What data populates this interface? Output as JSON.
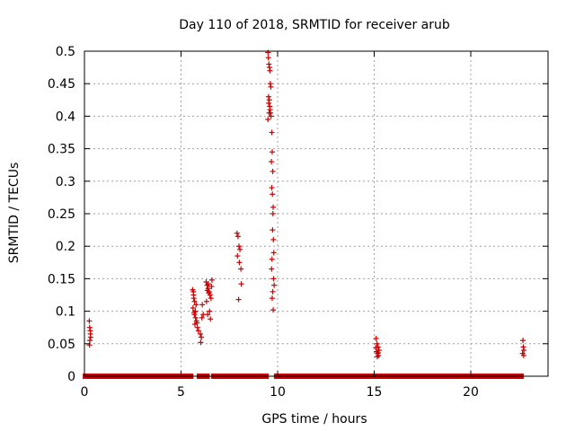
{
  "chart_data": {
    "type": "scatter",
    "title": "Day 110 of 2018, SRMTID for receiver arub",
    "xlabel": "GPS time / hours",
    "ylabel": "SRMTID / TECUs",
    "xlim": [
      0,
      24
    ],
    "ylim": [
      0,
      0.5
    ],
    "xticks": [
      0,
      5,
      10,
      15,
      20
    ],
    "xtick_labels": [
      "0",
      "5",
      "10",
      "15",
      "20"
    ],
    "yticks": [
      0,
      0.05,
      0.1,
      0.15,
      0.2,
      0.25,
      0.3,
      0.35,
      0.4,
      0.45,
      0.5
    ],
    "ytick_labels": [
      "0",
      "0.05",
      "0.1",
      "0.15",
      "0.2",
      "0.25",
      "0.3",
      "0.35",
      "0.4",
      "0.45",
      "0.5"
    ],
    "grid": true,
    "marker": "+",
    "series": [
      {
        "name": "SRMTID",
        "color": "#cc0000",
        "zero_segments": [
          [
            0.05,
            0.25
          ],
          [
            0.5,
            5.5
          ],
          [
            5.95,
            6.35
          ],
          [
            6.7,
            7.9
          ],
          [
            8.1,
            9.4
          ],
          [
            9.95,
            15.0
          ],
          [
            15.25,
            22.6
          ]
        ],
        "x": [
          0.25,
          0.27,
          0.3,
          0.32,
          0.28,
          0.26,
          0.31,
          5.6,
          5.65,
          5.7,
          5.62,
          5.68,
          5.75,
          5.8,
          5.72,
          5.85,
          5.9,
          5.78,
          5.66,
          5.74,
          5.64,
          5.69,
          5.83,
          6.0,
          6.05,
          6.02,
          6.1,
          6.15,
          6.08,
          6.3,
          6.35,
          6.4,
          6.45,
          6.5,
          6.55,
          6.6,
          6.42,
          6.48,
          6.38,
          6.52,
          6.32,
          6.58,
          6.44,
          6.36,
          7.9,
          7.95,
          8.0,
          8.05,
          7.92,
          8.02,
          8.1,
          8.12,
          7.98,
          9.5,
          9.52,
          9.55,
          9.58,
          9.6,
          9.62,
          9.65,
          9.53,
          9.57,
          9.61,
          9.63,
          9.66,
          9.5,
          9.54,
          9.59,
          9.56,
          9.7,
          9.72,
          9.68,
          9.75,
          9.7,
          9.73,
          9.77,
          9.76,
          9.74,
          9.78,
          9.8,
          9.71,
          9.69,
          9.79,
          9.82,
          9.75,
          9.72,
          9.77,
          15.1,
          15.15,
          15.2,
          15.25,
          15.12,
          15.18,
          15.22,
          15.16,
          15.08,
          15.2,
          22.7,
          22.72,
          22.75,
          22.68,
          22.74
        ],
        "y": [
          0.085,
          0.075,
          0.07,
          0.06,
          0.055,
          0.048,
          0.065,
          0.133,
          0.125,
          0.115,
          0.105,
          0.098,
          0.09,
          0.085,
          0.08,
          0.075,
          0.07,
          0.11,
          0.12,
          0.1,
          0.13,
          0.095,
          0.082,
          0.065,
          0.06,
          0.052,
          0.11,
          0.095,
          0.09,
          0.145,
          0.14,
          0.135,
          0.13,
          0.125,
          0.12,
          0.148,
          0.142,
          0.1,
          0.095,
          0.088,
          0.115,
          0.138,
          0.128,
          0.132,
          0.22,
          0.215,
          0.2,
          0.195,
          0.185,
          0.175,
          0.165,
          0.142,
          0.118,
          0.498,
          0.49,
          0.48,
          0.475,
          0.47,
          0.45,
          0.445,
          0.43,
          0.425,
          0.41,
          0.405,
          0.4,
          0.395,
          0.42,
          0.415,
          0.405,
          0.375,
          0.345,
          0.33,
          0.315,
          0.29,
          0.28,
          0.26,
          0.25,
          0.225,
          0.21,
          0.19,
          0.18,
          0.165,
          0.15,
          0.14,
          0.13,
          0.12,
          0.102,
          0.058,
          0.05,
          0.045,
          0.04,
          0.038,
          0.035,
          0.032,
          0.03,
          0.044,
          0.036,
          0.055,
          0.045,
          0.04,
          0.035,
          0.032
        ]
      }
    ]
  }
}
